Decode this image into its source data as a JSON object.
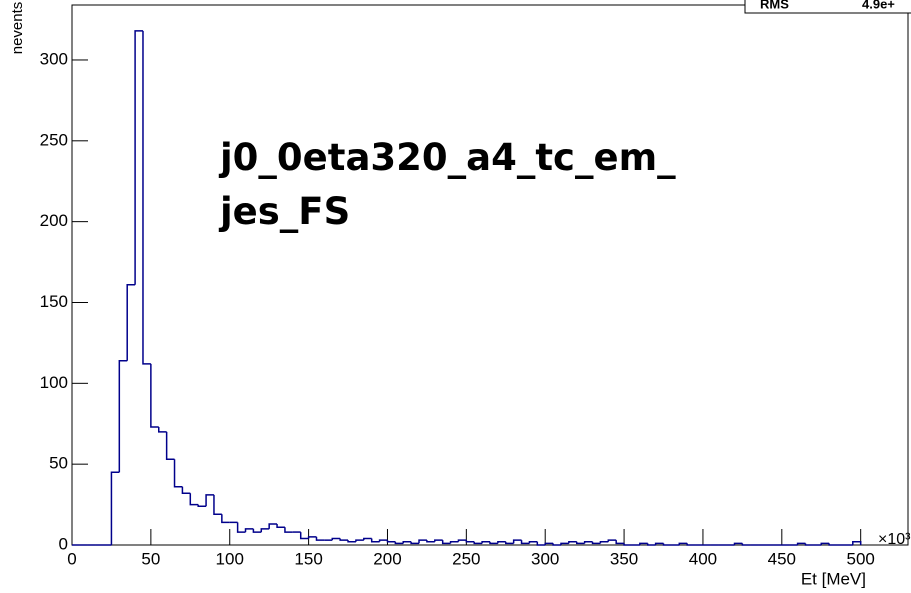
{
  "chart_data": {
    "type": "histogram",
    "title": "j0_0eta320_a4_tc_em_",
    "subtitle": "jes_FS",
    "x_label": "Et [MeV]",
    "y_label": "nevents",
    "x_multiplier": "×10³",
    "stats": [
      {
        "label": "RMS",
        "value": "4.9e+"
      }
    ],
    "color": "#00008b",
    "bins": [
      0,
      5,
      10,
      15,
      20,
      25,
      30,
      35,
      40,
      45,
      50,
      55,
      60,
      65,
      70,
      75,
      80,
      85,
      90,
      95,
      100,
      105,
      110,
      115,
      120,
      125,
      130,
      135,
      140,
      145,
      150,
      155,
      160,
      165,
      170,
      175,
      180,
      185,
      190,
      195,
      200,
      205,
      210,
      215,
      220,
      225,
      230,
      235,
      240,
      245,
      250,
      255,
      260,
      265,
      270,
      275,
      280,
      285,
      290,
      295,
      300,
      305,
      310,
      315,
      320,
      325,
      330,
      335,
      340,
      345,
      350,
      355,
      360,
      365,
      370,
      375,
      380,
      385,
      390,
      395,
      400,
      405,
      410,
      415,
      420,
      425,
      430,
      435,
      440,
      445,
      450,
      455,
      460,
      465,
      470,
      475,
      480,
      485,
      490,
      495,
      500
    ],
    "values": [
      0,
      0,
      0,
      0,
      0,
      45,
      114,
      161,
      318,
      112,
      73,
      70,
      53,
      36,
      32,
      25,
      24,
      31,
      19,
      14,
      14,
      8,
      10,
      8,
      10,
      13,
      11,
      8,
      8,
      4,
      5,
      3,
      3,
      4,
      3,
      2,
      3,
      4,
      2,
      3,
      2,
      1,
      2,
      1,
      3,
      2,
      3,
      1,
      2,
      3,
      2,
      1,
      2,
      1,
      2,
      1,
      3,
      1,
      2,
      0,
      1,
      0,
      1,
      2,
      1,
      2,
      1,
      2,
      3,
      1,
      0,
      0,
      1,
      0,
      1,
      0,
      0,
      1,
      0,
      0,
      0,
      0,
      0,
      0,
      1,
      0,
      0,
      0,
      0,
      0,
      0,
      0,
      1,
      0,
      0,
      1,
      0,
      0,
      0,
      2
    ],
    "xlim": [
      0,
      530
    ],
    "ylim": [
      0,
      334
    ],
    "xticks": [
      0,
      50,
      100,
      150,
      200,
      250,
      300,
      350,
      400,
      450,
      500
    ],
    "yticks": [
      0,
      50,
      100,
      150,
      200,
      250,
      300
    ]
  }
}
